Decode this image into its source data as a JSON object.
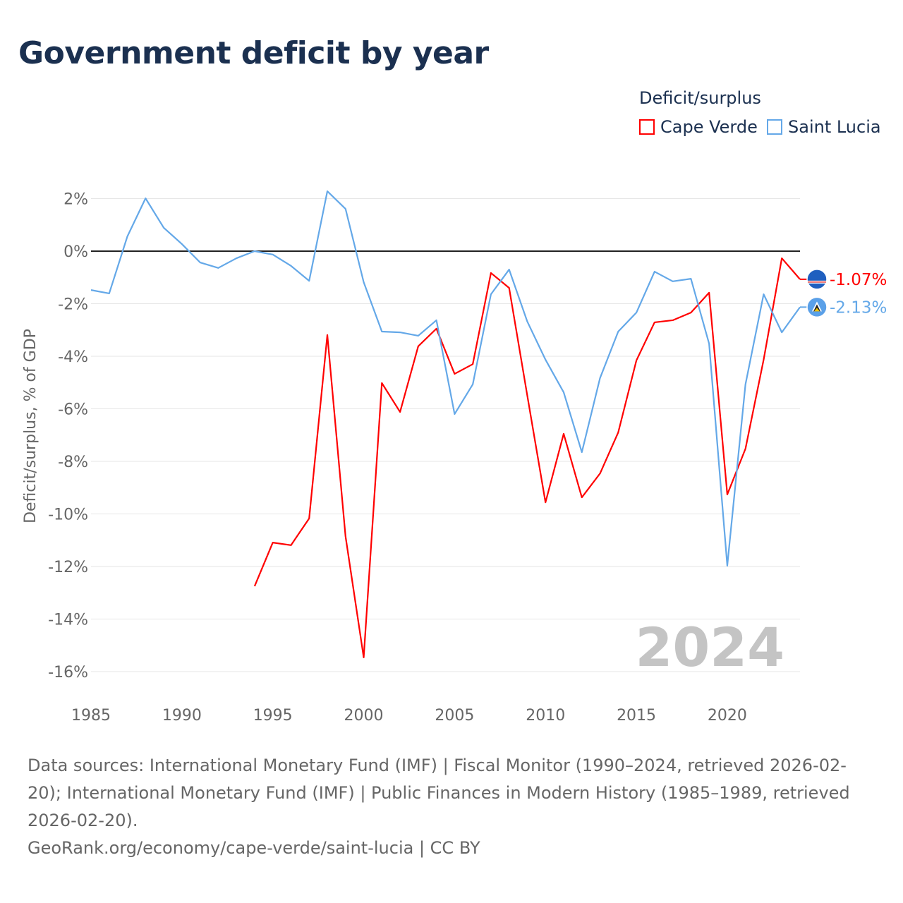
{
  "title": "Government deficit by year",
  "chart_data": {
    "type": "line",
    "title": "Government deficit by year",
    "xlabel": "",
    "ylabel": "Deficit/surplus, % of GDP",
    "xlim": [
      1985,
      2024
    ],
    "ylim": [
      -16,
      2
    ],
    "x_ticks": [
      "1985",
      "1990",
      "1995",
      "2000",
      "2005",
      "2010",
      "2015",
      "2020"
    ],
    "y_ticks": [
      "2%",
      "0%",
      "-2%",
      "-4%",
      "-6%",
      "-8%",
      "-10%",
      "-12%",
      "-14%",
      "-16%"
    ],
    "legend_title": "Deficit/surplus",
    "legend_position": "top-right",
    "year_watermark": "2024",
    "series": [
      {
        "name": "Cape Verde",
        "color": "#ff0000",
        "end_label": "-1.07%",
        "x": [
          1994,
          1995,
          1996,
          1997,
          1998,
          1999,
          2000,
          2001,
          2002,
          2003,
          2004,
          2005,
          2006,
          2007,
          2008,
          2009,
          2010,
          2011,
          2012,
          2013,
          2014,
          2015,
          2016,
          2017,
          2018,
          2019,
          2020,
          2021,
          2022,
          2023,
          2024
        ],
        "values": [
          -12.75,
          -11.09,
          -11.19,
          -10.17,
          -3.19,
          -10.85,
          -15.46,
          -5.02,
          -6.12,
          -3.62,
          -2.95,
          -4.67,
          -4.3,
          -0.83,
          -1.4,
          -5.5,
          -9.56,
          -6.95,
          -9.37,
          -8.46,
          -6.9,
          -4.16,
          -2.71,
          -2.63,
          -2.34,
          -1.58,
          -9.26,
          -7.52,
          -4.13,
          -0.27,
          -1.07
        ]
      },
      {
        "name": "Saint Lucia",
        "color": "#64a8e8",
        "end_label": "-2.13%",
        "x": [
          1985,
          1986,
          1987,
          1988,
          1989,
          1990,
          1991,
          1992,
          1993,
          1994,
          1995,
          1996,
          1997,
          1998,
          1999,
          2000,
          2001,
          2002,
          2003,
          2004,
          2005,
          2006,
          2007,
          2008,
          2009,
          2010,
          2011,
          2012,
          2013,
          2014,
          2015,
          2016,
          2017,
          2018,
          2019,
          2020,
          2021,
          2022,
          2023,
          2024
        ],
        "values": [
          -1.48,
          -1.61,
          0.56,
          2.01,
          0.89,
          0.27,
          -0.43,
          -0.64,
          -0.27,
          0.0,
          -0.13,
          -0.56,
          -1.13,
          2.28,
          1.61,
          -1.18,
          -3.06,
          -3.09,
          -3.22,
          -2.63,
          -6.2,
          -5.07,
          -1.64,
          -0.7,
          -2.68,
          -4.13,
          -5.37,
          -7.65,
          -4.83,
          -3.06,
          -2.34,
          -0.78,
          -1.15,
          -1.05,
          -3.52,
          -11.97,
          -5.07,
          -1.64,
          -3.09,
          -2.13
        ]
      }
    ]
  },
  "footer": {
    "sources": "Data sources: International Monetary Fund (IMF) | Fiscal Monitor (1990–2024, retrieved 2026-02-20); International Monetary Fund (IMF) | Public Finances in Modern History (1985–1989, retrieved 2026-02-20).",
    "credit": "GeoRank.org/economy/cape-verde/saint-lucia | CC BY"
  }
}
